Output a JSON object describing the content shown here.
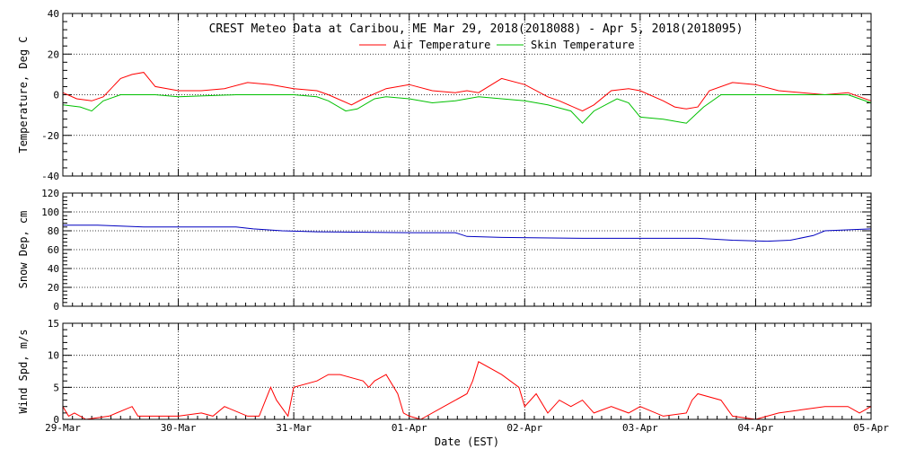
{
  "title": "CREST Meteo Data at Caribou, ME   Mar 29, 2018(2018088) - Apr  5, 2018(2018095)",
  "xlabel": "Date (EST)",
  "x_ticks": [
    "29-Mar",
    "30-Mar",
    "31-Mar",
    "01-Apr",
    "02-Apr",
    "03-Apr",
    "04-Apr",
    "05-Apr"
  ],
  "colors": {
    "air": "#ff0000",
    "skin": "#00c000",
    "snow": "#0000c0",
    "wind": "#ff0000",
    "axis": "#000000"
  },
  "chart_data": [
    {
      "type": "line",
      "ylabel": "Temperature, Deg C",
      "ylim": [
        -40,
        40
      ],
      "y_ticks": [
        -40,
        -20,
        0,
        20,
        40
      ],
      "xlim": [
        0,
        7
      ],
      "grid": true,
      "legend_position": "top-center",
      "series": [
        {
          "name": "Air Temperature",
          "color": "#ff0000",
          "x": [
            0,
            0.12,
            0.25,
            0.35,
            0.5,
            0.6,
            0.7,
            0.8,
            1.0,
            1.2,
            1.4,
            1.6,
            1.8,
            2.0,
            2.2,
            2.3,
            2.5,
            2.6,
            2.8,
            3.0,
            3.2,
            3.4,
            3.5,
            3.6,
            3.8,
            4.0,
            4.2,
            4.3,
            4.5,
            4.6,
            4.75,
            4.9,
            5.0,
            5.2,
            5.3,
            5.4,
            5.5,
            5.6,
            5.8,
            6.0,
            6.2,
            6.4,
            6.6,
            6.8,
            7.0
          ],
          "y": [
            1,
            -2,
            -3,
            -1,
            8,
            10,
            11,
            4,
            2,
            2,
            3,
            6,
            5,
            3,
            2,
            0,
            -5,
            -2,
            3,
            5,
            2,
            1,
            2,
            1,
            8,
            5,
            -1,
            -3,
            -8,
            -5,
            2,
            3,
            2,
            -3,
            -6,
            -7,
            -6,
            2,
            6,
            5,
            2,
            1,
            0,
            1,
            -3
          ]
        },
        {
          "name": "Skin Temperature",
          "color": "#00c000",
          "x": [
            0,
            0.15,
            0.25,
            0.35,
            0.5,
            0.8,
            1.0,
            1.5,
            2.0,
            2.2,
            2.3,
            2.45,
            2.55,
            2.7,
            2.8,
            3.0,
            3.2,
            3.4,
            3.6,
            3.8,
            4.0,
            4.2,
            4.4,
            4.5,
            4.6,
            4.8,
            4.9,
            5.0,
            5.2,
            5.4,
            5.55,
            5.7,
            6.0,
            6.4,
            6.8,
            7.0
          ],
          "y": [
            -5,
            -6,
            -8,
            -3,
            0,
            0,
            -1,
            0,
            0,
            -1,
            -3,
            -8,
            -7,
            -2,
            -1,
            -2,
            -4,
            -3,
            -1,
            -2,
            -3,
            -5,
            -8,
            -14,
            -8,
            -2,
            -4,
            -11,
            -12,
            -14,
            -6,
            0,
            0,
            0,
            0,
            -4
          ]
        }
      ]
    },
    {
      "type": "line",
      "ylabel": "Snow Dep, cm",
      "ylim": [
        0,
        120
      ],
      "y_ticks": [
        0,
        20,
        40,
        60,
        80,
        100,
        120
      ],
      "xlim": [
        0,
        7
      ],
      "grid": true,
      "series": [
        {
          "color": "#0000c0",
          "x": [
            0,
            0.3,
            0.5,
            0.7,
            1.0,
            1.5,
            1.65,
            1.9,
            2.2,
            3.0,
            3.4,
            3.5,
            3.8,
            4.5,
            5.0,
            5.5,
            5.8,
            6.1,
            6.3,
            6.5,
            6.6,
            7.0
          ],
          "y": [
            86,
            86,
            85,
            84,
            84,
            84,
            82,
            80,
            79,
            78,
            78,
            74,
            73,
            72,
            72,
            72,
            70,
            69,
            70,
            75,
            80,
            82
          ]
        }
      ]
    },
    {
      "type": "line",
      "ylabel": "Wind Spd, m/s",
      "ylim": [
        0,
        15
      ],
      "y_ticks": [
        0,
        5,
        10,
        15
      ],
      "xlim": [
        0,
        7
      ],
      "grid": true,
      "series": [
        {
          "color": "#ff0000",
          "x": [
            0,
            0.05,
            0.1,
            0.2,
            0.4,
            0.6,
            0.65,
            0.75,
            0.9,
            1.0,
            1.2,
            1.3,
            1.4,
            1.6,
            1.7,
            1.8,
            1.85,
            1.95,
            2.0,
            2.2,
            2.3,
            2.4,
            2.6,
            2.65,
            2.7,
            2.8,
            2.9,
            2.95,
            3.0,
            3.1,
            3.3,
            3.5,
            3.55,
            3.6,
            3.8,
            3.95,
            4.0,
            4.1,
            4.2,
            4.3,
            4.4,
            4.5,
            4.6,
            4.75,
            4.9,
            5.0,
            5.2,
            5.4,
            5.45,
            5.5,
            5.7,
            5.8,
            6.0,
            6.2,
            6.4,
            6.6,
            6.8,
            6.9,
            7.0
          ],
          "y": [
            2,
            0.5,
            1,
            0,
            0.5,
            2,
            0.5,
            0.5,
            0.5,
            0.5,
            1,
            0.5,
            2,
            0.5,
            0.5,
            5,
            3,
            0.5,
            5,
            6,
            7,
            7,
            6,
            5,
            6,
            7,
            4,
            1,
            0.5,
            0,
            2,
            4,
            6,
            9,
            7,
            5,
            2,
            4,
            1,
            3,
            2,
            3,
            1,
            2,
            1,
            2,
            0.5,
            1,
            3,
            4,
            3,
            0.5,
            0,
            1,
            1.5,
            2,
            2,
            1,
            2
          ]
        }
      ]
    }
  ]
}
